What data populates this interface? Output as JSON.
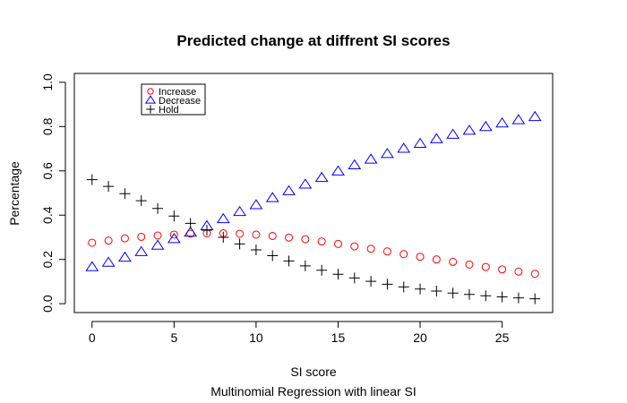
{
  "chart_data": {
    "type": "scatter",
    "title": "Predicted change at diffrent SI scores",
    "xlabel": "SI score",
    "subtitle": "Multinomial Regression with linear SI",
    "ylabel": "Percentage",
    "xlim": [
      -1.08,
      28.08
    ],
    "ylim": [
      -0.04,
      1.04
    ],
    "x_ticks": [
      0,
      5,
      10,
      15,
      20,
      25
    ],
    "y_ticks": [
      0.0,
      0.2,
      0.4,
      0.6,
      0.8,
      1.0
    ],
    "x_tick_labels": [
      "0",
      "5",
      "10",
      "15",
      "20",
      "25"
    ],
    "y_tick_labels": [
      "0.0",
      "0.2",
      "0.4",
      "0.6",
      "0.8",
      "1.0"
    ],
    "grid": false,
    "legend_position": "top-left",
    "x": [
      0,
      1,
      2,
      3,
      4,
      5,
      6,
      7,
      8,
      9,
      10,
      11,
      12,
      13,
      14,
      15,
      16,
      17,
      18,
      19,
      20,
      21,
      22,
      23,
      24,
      25,
      26,
      27
    ],
    "series": [
      {
        "name": "Increase",
        "marker": "circle",
        "color": "#ff0000",
        "values": [
          0.275,
          0.285,
          0.295,
          0.302,
          0.308,
          0.312,
          0.316,
          0.318,
          0.318,
          0.316,
          0.312,
          0.306,
          0.299,
          0.291,
          0.281,
          0.27,
          0.259,
          0.248,
          0.236,
          0.224,
          0.212,
          0.2,
          0.189,
          0.177,
          0.166,
          0.155,
          0.145,
          0.135
        ]
      },
      {
        "name": "Decrease",
        "marker": "triangle",
        "color": "#0000ff",
        "values": [
          0.165,
          0.185,
          0.208,
          0.233,
          0.262,
          0.292,
          0.321,
          0.35,
          0.382,
          0.414,
          0.445,
          0.477,
          0.508,
          0.538,
          0.568,
          0.597,
          0.625,
          0.651,
          0.676,
          0.7,
          0.722,
          0.743,
          0.763,
          0.781,
          0.798,
          0.814,
          0.829,
          0.843
        ]
      },
      {
        "name": "Hold",
        "marker": "plus",
        "color": "#000000",
        "values": [
          0.56,
          0.53,
          0.497,
          0.465,
          0.43,
          0.396,
          0.363,
          0.332,
          0.3,
          0.27,
          0.243,
          0.217,
          0.193,
          0.171,
          0.151,
          0.133,
          0.116,
          0.101,
          0.088,
          0.076,
          0.066,
          0.057,
          0.048,
          0.042,
          0.036,
          0.031,
          0.026,
          0.022
        ]
      }
    ]
  }
}
